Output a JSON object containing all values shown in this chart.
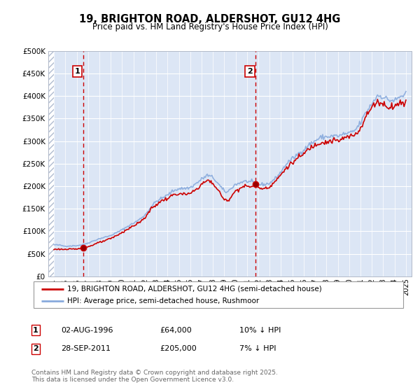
{
  "title": "19, BRIGHTON ROAD, ALDERSHOT, GU12 4HG",
  "subtitle": "Price paid vs. HM Land Registry's House Price Index (HPI)",
  "legend_line1": "19, BRIGHTON ROAD, ALDERSHOT, GU12 4HG (semi-detached house)",
  "legend_line2": "HPI: Average price, semi-detached house, Rushmoor",
  "footer": "Contains HM Land Registry data © Crown copyright and database right 2025.\nThis data is licensed under the Open Government Licence v3.0.",
  "transaction1_label": "1",
  "transaction1_date": "02-AUG-1996",
  "transaction1_price": "£64,000",
  "transaction1_hpi": "10% ↓ HPI",
  "transaction1_year": 1996.58,
  "transaction1_value": 64000,
  "transaction2_label": "2",
  "transaction2_date": "28-SEP-2011",
  "transaction2_price": "£205,000",
  "transaction2_hpi": "7% ↓ HPI",
  "transaction2_year": 2011.75,
  "transaction2_value": 205000,
  "ylim": [
    0,
    500000
  ],
  "yticks": [
    0,
    50000,
    100000,
    150000,
    200000,
    250000,
    300000,
    350000,
    400000,
    450000,
    500000
  ],
  "ytick_labels": [
    "£0",
    "£50K",
    "£100K",
    "£150K",
    "£200K",
    "£250K",
    "£300K",
    "£350K",
    "£400K",
    "£450K",
    "£500K"
  ],
  "xlim_start": 1993.5,
  "xlim_end": 2025.5,
  "red_color": "#cc0000",
  "blue_color": "#88aadd",
  "bg_color": "#dce6f5",
  "grid_color": "#ffffff",
  "vline_color": "#cc0000"
}
